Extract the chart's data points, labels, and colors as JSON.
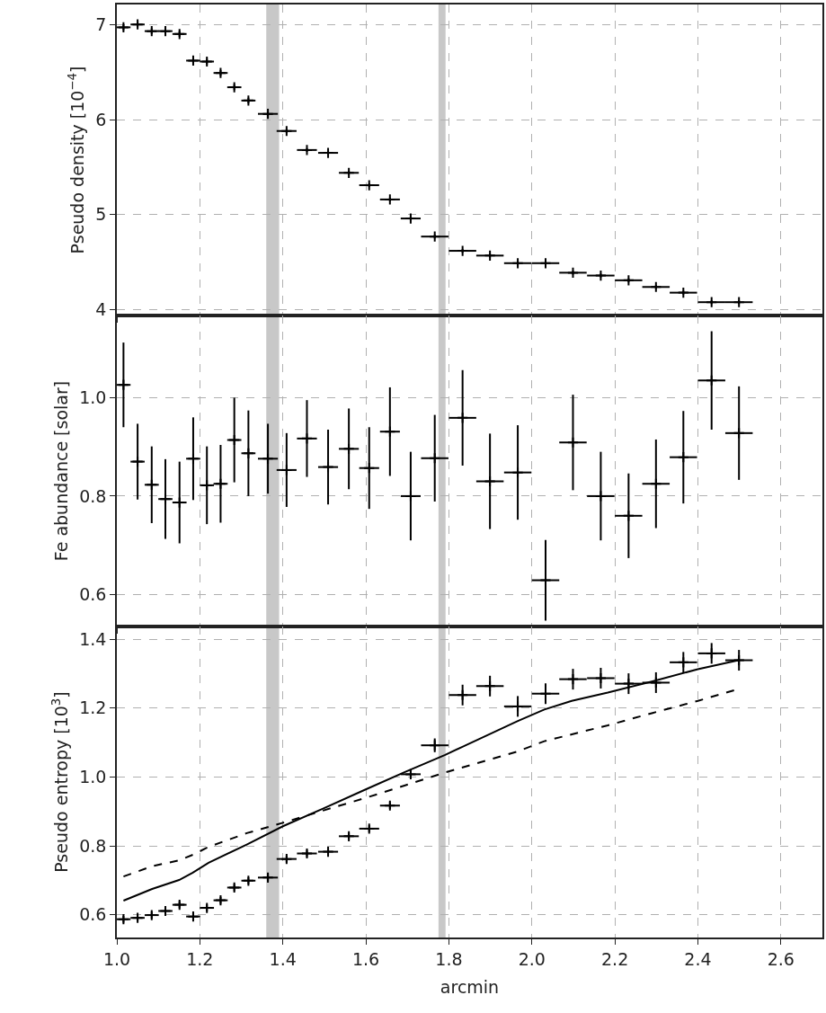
{
  "chart_data": [
    {
      "type": "scatter",
      "ylabel": "Pseudo density [10$^{−4}$]",
      "marker": "cross",
      "grid": true,
      "tick_labels": "y",
      "xlim": [
        1.0,
        2.7
      ],
      "xticks": [
        {
          "value": 1.0,
          "label": null
        },
        {
          "value": 1.2,
          "label": null
        },
        {
          "value": 1.4,
          "label": null
        },
        {
          "value": 1.6,
          "label": null
        },
        {
          "value": 1.8,
          "label": null
        },
        {
          "value": 2.0,
          "label": null
        },
        {
          "value": 2.2,
          "label": null
        },
        {
          "value": 2.4,
          "label": null
        },
        {
          "value": 2.6,
          "label": null
        }
      ],
      "ylim": [
        3.94,
        7.21
      ],
      "yticks": [
        4,
        5,
        6,
        7
      ],
      "bands": [
        {
          "axis": "x",
          "from": 1.36,
          "to": 1.391,
          "color": "#c8c8c8"
        },
        {
          "axis": "x",
          "from": 1.775,
          "to": 1.792,
          "color": "#c8c8c8"
        }
      ],
      "series": [
        {
          "color": "#000000",
          "x": [
            1.016,
            1.05,
            1.084,
            1.117,
            1.151,
            1.184,
            1.217,
            1.25,
            1.283,
            1.317,
            1.364,
            1.409,
            1.458,
            1.509,
            1.559,
            1.608,
            1.658,
            1.708,
            1.766,
            1.833,
            1.899,
            1.966,
            2.033,
            2.099,
            2.166,
            2.233,
            2.299,
            2.365,
            2.433,
            2.499
          ],
          "values": [
            6.97,
            7.0,
            6.93,
            6.93,
            6.9,
            6.62,
            6.61,
            6.49,
            6.34,
            6.2,
            6.06,
            5.88,
            5.68,
            5.65,
            5.44,
            5.31,
            5.16,
            4.96,
            4.77,
            4.62,
            4.57,
            4.49,
            4.49,
            4.39,
            4.36,
            4.31,
            4.24,
            4.18,
            4.08,
            4.08
          ],
          "errors": [
            0.03,
            0.03,
            0.03,
            0.03,
            0.03,
            0.03,
            0.03,
            0.03,
            0.03,
            0.03,
            0.02,
            0.02,
            0.02,
            0.02,
            0.02,
            0.02,
            0.02,
            0.02,
            0.02,
            0.02,
            0.02,
            0.02,
            0.02,
            0.02,
            0.02,
            0.02,
            0.02,
            0.02,
            0.02,
            0.02
          ],
          "xerrors": [
            0.017,
            0.017,
            0.017,
            0.017,
            0.017,
            0.017,
            0.017,
            0.017,
            0.017,
            0.017,
            0.024,
            0.024,
            0.024,
            0.024,
            0.024,
            0.024,
            0.024,
            0.024,
            0.033,
            0.033,
            0.033,
            0.033,
            0.033,
            0.033,
            0.033,
            0.033,
            0.033,
            0.033,
            0.033,
            0.033
          ]
        }
      ]
    },
    {
      "type": "scatter",
      "ylabel": "Fe abundance [solar]",
      "marker": "cross",
      "grid": true,
      "tick_labels": "y",
      "xlim": [
        1.0,
        2.7
      ],
      "xticks": [
        {
          "value": 1.0,
          "label": null
        },
        {
          "value": 1.2,
          "label": null
        },
        {
          "value": 1.4,
          "label": null
        },
        {
          "value": 1.6,
          "label": null
        },
        {
          "value": 1.8,
          "label": null
        },
        {
          "value": 2.0,
          "label": null
        },
        {
          "value": 2.2,
          "label": null
        },
        {
          "value": 2.4,
          "label": null
        },
        {
          "value": 2.6,
          "label": null
        }
      ],
      "ylim": [
        0.535,
        1.167
      ],
      "yticks": [
        0.6,
        0.8,
        {
          "value": 1.0,
          "label": "1.0"
        }
      ],
      "bands": [
        {
          "axis": "x",
          "from": 1.36,
          "to": 1.391,
          "color": "#c8c8c8"
        },
        {
          "axis": "x",
          "from": 1.775,
          "to": 1.792,
          "color": "#c8c8c8"
        }
      ],
      "series": [
        {
          "color": "#000000",
          "x": [
            1.016,
            1.05,
            1.084,
            1.117,
            1.151,
            1.184,
            1.217,
            1.25,
            1.283,
            1.317,
            1.364,
            1.409,
            1.458,
            1.509,
            1.559,
            1.608,
            1.658,
            1.708,
            1.766,
            1.833,
            1.899,
            1.966,
            2.033,
            2.099,
            2.166,
            2.233,
            2.299,
            2.365,
            2.433,
            2.499
          ],
          "values": [
            1.026,
            0.87,
            0.823,
            0.794,
            0.787,
            0.876,
            0.822,
            0.825,
            0.914,
            0.887,
            0.876,
            0.853,
            0.917,
            0.859,
            0.896,
            0.857,
            0.931,
            0.8,
            0.877,
            0.959,
            0.83,
            0.848,
            0.629,
            0.909,
            0.8,
            0.76,
            0.825,
            0.879,
            1.035,
            0.928
          ],
          "errors": [
            0.086,
            0.077,
            0.078,
            0.081,
            0.083,
            0.084,
            0.079,
            0.079,
            0.086,
            0.087,
            0.071,
            0.075,
            0.078,
            0.076,
            0.082,
            0.083,
            0.09,
            0.09,
            0.088,
            0.097,
            0.097,
            0.096,
            0.082,
            0.097,
            0.09,
            0.086,
            0.09,
            0.094,
            0.1,
            0.095
          ],
          "xerrors": [
            0.017,
            0.017,
            0.017,
            0.017,
            0.017,
            0.017,
            0.017,
            0.017,
            0.017,
            0.017,
            0.024,
            0.024,
            0.024,
            0.024,
            0.024,
            0.024,
            0.024,
            0.024,
            0.033,
            0.033,
            0.033,
            0.033,
            0.033,
            0.033,
            0.033,
            0.033,
            0.033,
            0.033,
            0.033,
            0.033
          ]
        }
      ]
    },
    {
      "type": "scatter",
      "ylabel": "Pseudo entropy [10$^{3}$]",
      "xlabel": "arcmin",
      "grid": true,
      "xlim": [
        1.0,
        2.7
      ],
      "xticks": [
        {
          "value": 1.0,
          "label": "1.0"
        },
        {
          "value": 1.2,
          "label": "1.2"
        },
        {
          "value": 1.4,
          "label": "1.4"
        },
        {
          "value": 1.6,
          "label": "1.6"
        },
        {
          "value": 1.8,
          "label": "1.8"
        },
        {
          "value": 2.0,
          "label": "2.0"
        },
        {
          "value": 2.2,
          "label": "2.2"
        },
        {
          "value": 2.4,
          "label": "2.4"
        },
        {
          "value": 2.6,
          "label": "2.6"
        }
      ],
      "ylim": [
        0.534,
        1.437
      ],
      "yticks": [
        0.6,
        0.8,
        {
          "value": 1.0,
          "label": "1.0"
        },
        1.2,
        1.4
      ],
      "bands": [
        {
          "axis": "x",
          "from": 1.36,
          "to": 1.391,
          "color": "#c8c8c8"
        },
        {
          "axis": "x",
          "from": 1.775,
          "to": 1.792,
          "color": "#c8c8c8"
        }
      ],
      "series": [
        {
          "color": "#000000",
          "marker": "cross",
          "x": [
            1.016,
            1.05,
            1.084,
            1.117,
            1.151,
            1.184,
            1.217,
            1.25,
            1.283,
            1.317,
            1.364,
            1.409,
            1.458,
            1.509,
            1.559,
            1.608,
            1.658,
            1.708,
            1.766,
            1.833,
            1.899,
            1.966,
            2.033,
            2.099,
            2.166,
            2.233,
            2.299,
            2.365,
            2.433,
            2.499
          ],
          "values": [
            0.587,
            0.591,
            0.599,
            0.611,
            0.629,
            0.595,
            0.62,
            0.642,
            0.679,
            0.699,
            0.708,
            0.762,
            0.778,
            0.783,
            0.828,
            0.85,
            0.917,
            1.008,
            1.092,
            1.238,
            1.264,
            1.205,
            1.242,
            1.284,
            1.287,
            1.271,
            1.274,
            1.333,
            1.359,
            1.339
          ],
          "errors": [
            0.01,
            0.01,
            0.01,
            0.01,
            0.01,
            0.01,
            0.01,
            0.01,
            0.01,
            0.01,
            0.01,
            0.01,
            0.01,
            0.01,
            0.01,
            0.01,
            0.01,
            0.01,
            0.02,
            0.03,
            0.03,
            0.03,
            0.03,
            0.03,
            0.03,
            0.03,
            0.03,
            0.03,
            0.03,
            0.03
          ],
          "xerrors": [
            0.017,
            0.017,
            0.017,
            0.017,
            0.017,
            0.017,
            0.017,
            0.017,
            0.017,
            0.017,
            0.024,
            0.024,
            0.024,
            0.024,
            0.024,
            0.024,
            0.024,
            0.024,
            0.033,
            0.033,
            0.033,
            0.033,
            0.033,
            0.033,
            0.033,
            0.033,
            0.033,
            0.033,
            0.033,
            0.033
          ]
        },
        {
          "type": "line",
          "line_style": "solid",
          "color": "#000000",
          "x": [
            1.016,
            1.085,
            1.15,
            1.183,
            1.221,
            1.313,
            1.4,
            1.498,
            1.596,
            1.693,
            1.791,
            1.835,
            1.965,
            2.03,
            2.096,
            2.183,
            2.291,
            2.4,
            2.498
          ],
          "values": [
            0.641,
            0.675,
            0.701,
            0.722,
            0.751,
            0.804,
            0.857,
            0.909,
            0.962,
            1.014,
            1.064,
            1.089,
            1.162,
            1.196,
            1.221,
            1.245,
            1.278,
            1.313,
            1.339
          ]
        },
        {
          "type": "line",
          "line_style": "dashed",
          "color": "#000000",
          "x": [
            1.016,
            1.085,
            1.15,
            1.183,
            1.221,
            1.313,
            1.4,
            1.498,
            1.596,
            1.693,
            1.791,
            1.965,
            2.03,
            2.183,
            2.291,
            2.4,
            2.493
          ],
          "values": [
            0.711,
            0.741,
            0.758,
            0.774,
            0.797,
            0.837,
            0.867,
            0.903,
            0.938,
            0.975,
            1.013,
            1.074,
            1.104,
            1.15,
            1.186,
            1.221,
            1.254
          ]
        }
      ]
    }
  ]
}
